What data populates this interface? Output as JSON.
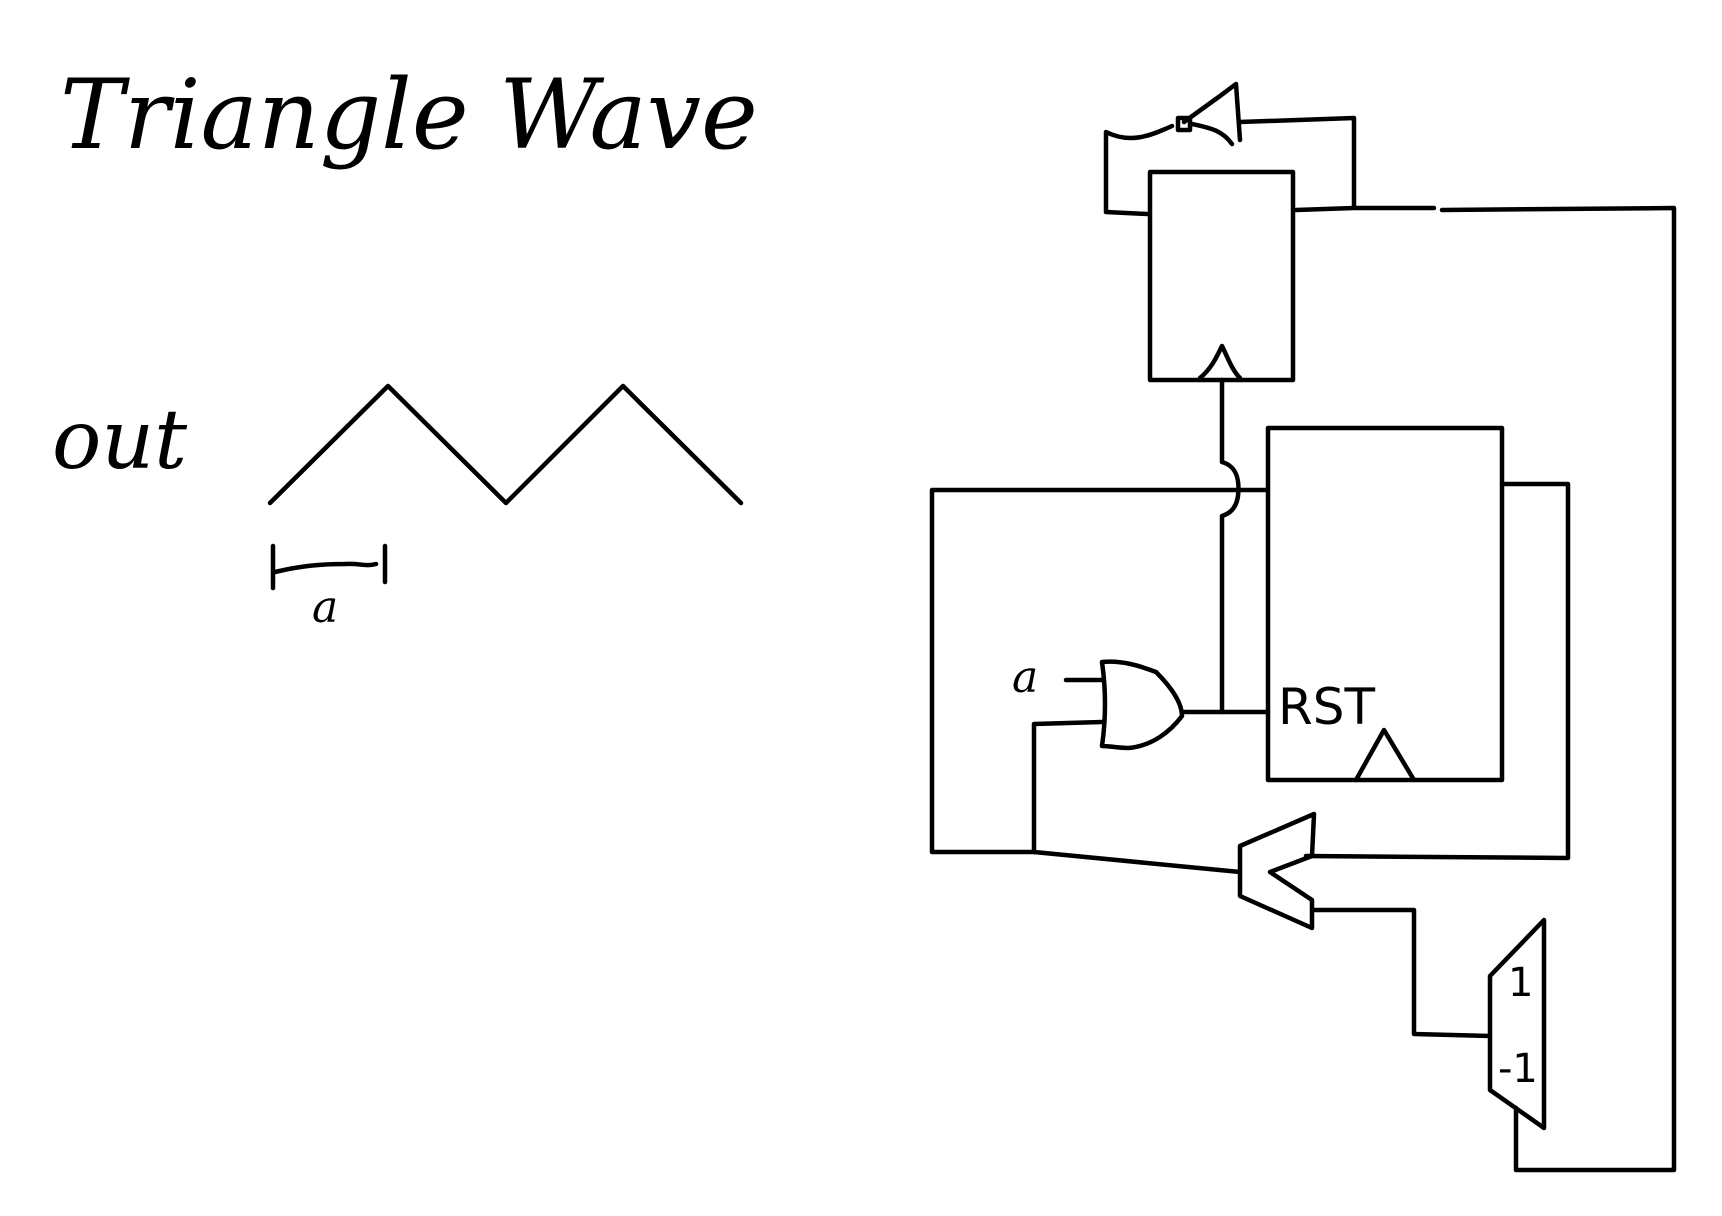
{
  "title": "Triangle Wave",
  "waveform": {
    "signal_label": "out",
    "period_label": "a"
  },
  "circuit": {
    "gate_input_label": "a",
    "reset_label": "RST",
    "const_top": "1",
    "const_bottom": "-1"
  }
}
